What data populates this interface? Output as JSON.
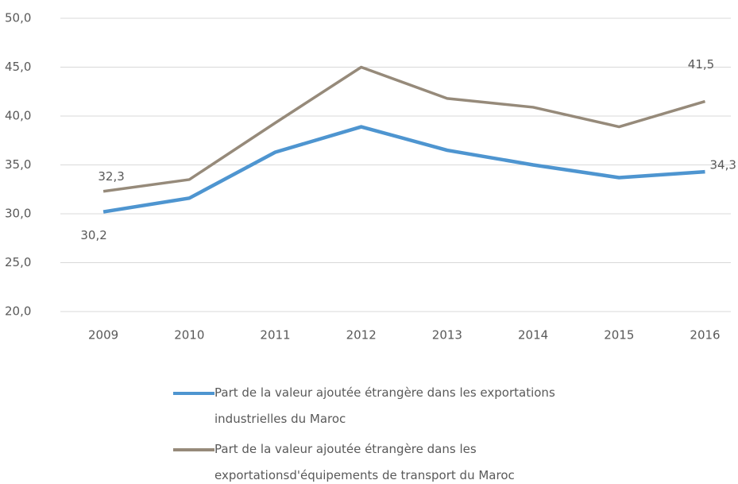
{
  "chart_data": {
    "type": "line",
    "categories": [
      "2009",
      "2010",
      "2011",
      "2012",
      "2013",
      "2014",
      "2015",
      "2016"
    ],
    "series": [
      {
        "name": "Part de la valeur ajoutée étrangère dans les exportations industrielles du Maroc",
        "color": "#4e95d0",
        "values": [
          30.2,
          31.6,
          36.3,
          38.9,
          36.5,
          35.0,
          33.7,
          34.3
        ],
        "value_labels": [
          "30,2",
          null,
          null,
          null,
          null,
          null,
          null,
          "34,3"
        ]
      },
      {
        "name": "Part de la valeur ajoutée étrangère dans les exportationsd'équipements de transport du Maroc",
        "color": "#968a7a",
        "values": [
          32.3,
          33.5,
          39.3,
          45.0,
          41.8,
          40.9,
          38.9,
          41.5
        ],
        "value_labels": [
          "32,3",
          null,
          null,
          null,
          null,
          null,
          null,
          "41,5"
        ]
      }
    ],
    "ylim": [
      20,
      50
    ],
    "yticks": [
      {
        "value": 20,
        "label": "20,0"
      },
      {
        "value": 25,
        "label": "25,0"
      },
      {
        "value": 30,
        "label": "30,0"
      },
      {
        "value": 35,
        "label": "35,0"
      },
      {
        "value": 40,
        "label": "40,0"
      },
      {
        "value": 45,
        "label": "45,0"
      },
      {
        "value": 50,
        "label": "50,0"
      }
    ],
    "grid": true,
    "legend": "bottom"
  }
}
